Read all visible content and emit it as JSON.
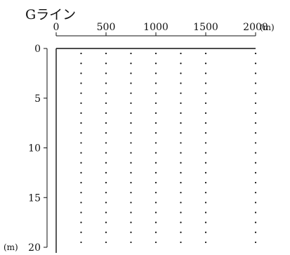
{
  "title": "Gライン",
  "x_axis": {
    "ticks": [
      "0",
      "500",
      "1000",
      "1500",
      "2000"
    ],
    "unit": "(m)"
  },
  "y_axis": {
    "ticks": [
      "0",
      "5",
      "10",
      "15",
      "20"
    ],
    "unit": "(m)"
  },
  "chart_data": {
    "type": "scatter",
    "title": "Gライン",
    "xlabel": "(m)",
    "ylabel": "(m)",
    "xlim": [
      0,
      2000
    ],
    "ylim": [
      0,
      20
    ],
    "y_inverted": true,
    "grid": false,
    "series": [
      {
        "x": 250,
        "y": [
          0.5,
          1.5,
          2.5,
          3.5,
          4.5,
          5.5,
          6.5,
          7.5,
          8.5,
          9.5,
          10.5,
          11.5,
          12.5,
          13.5,
          14.5,
          15.5,
          16.5,
          17.5,
          18.5,
          19.5
        ]
      },
      {
        "x": 500,
        "y": [
          0.5,
          1.5,
          2.5,
          3.5,
          4.5,
          5.5,
          6.5,
          7.5,
          8.5,
          9.5,
          10.5,
          11.5,
          12.5,
          13.5,
          14.5,
          15.5,
          16.5,
          17.5,
          18.5,
          19.5
        ]
      },
      {
        "x": 750,
        "y": [
          0.5,
          1.5,
          2.5,
          3.5,
          4.5,
          5.5,
          6.5,
          7.5,
          8.5,
          9.5,
          10.5,
          11.5,
          12.5,
          13.5,
          14.5,
          15.5,
          16.5,
          17.5,
          18.5,
          19.5
        ]
      },
      {
        "x": 1000,
        "y": [
          0.5,
          1.5,
          2.5,
          3.5,
          4.5,
          5.5,
          6.5,
          7.5,
          8.5,
          9.5,
          10.5,
          11.5,
          12.5,
          13.5,
          14.5,
          15.5,
          16.5,
          17.5,
          18.5,
          19.5
        ]
      },
      {
        "x": 1250,
        "y": [
          0.5,
          1.5,
          2.5,
          3.5,
          4.5,
          5.5,
          6.5,
          7.5,
          8.5,
          9.5,
          10.5,
          11.5,
          12.5,
          13.5,
          14.5,
          15.5,
          16.5,
          17.5,
          18.5,
          19.5
        ]
      },
      {
        "x": 1500,
        "y": [
          0.5,
          1.5,
          2.5,
          3.5,
          4.5,
          5.5,
          6.5,
          7.5,
          8.5,
          9.5,
          10.5,
          11.5,
          12.5,
          13.5,
          14.5,
          15.5,
          16.5,
          17.5,
          18.5,
          19.5
        ]
      },
      {
        "x": 2000,
        "y": [
          0.5,
          1.5,
          2.5,
          3.5,
          4.5,
          5.5,
          6.5,
          7.5,
          8.5,
          9.5,
          10.5,
          11.5,
          12.5,
          13.5,
          14.5,
          15.5,
          16.5,
          17.5,
          18.5,
          19.5
        ]
      }
    ]
  }
}
